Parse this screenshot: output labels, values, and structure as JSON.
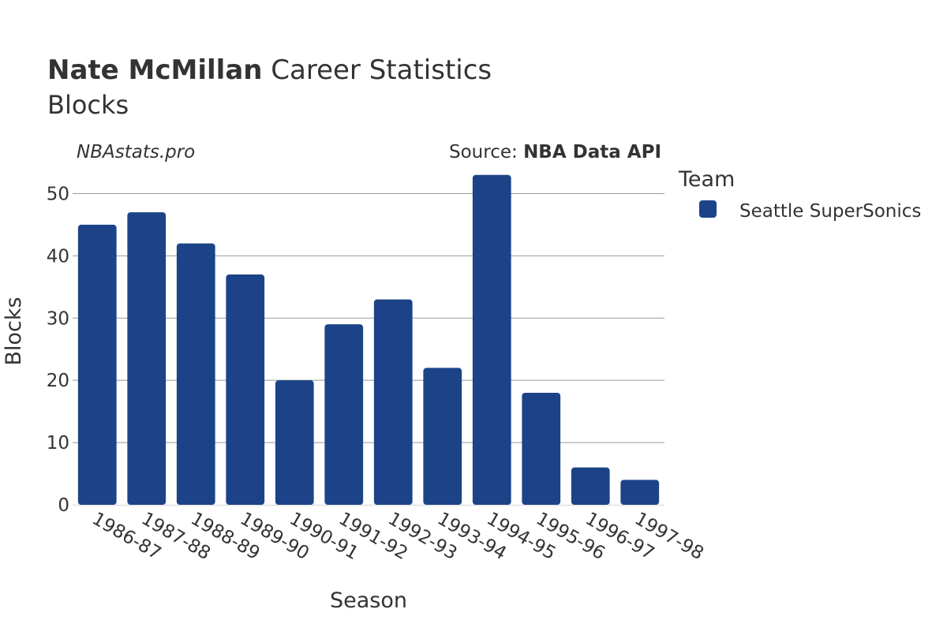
{
  "header": {
    "player_name": "Nate McMillan",
    "title_rest": " Career Statistics",
    "subtitle": "Blocks"
  },
  "credit": "NBAstats.pro",
  "source": {
    "prefix": "Source: ",
    "name": "NBA Data API"
  },
  "legend": {
    "title": "Team",
    "items": [
      {
        "label": "Seattle SuperSonics",
        "color": "#1c4388"
      }
    ]
  },
  "chart_data": {
    "type": "bar",
    "title": "Nate McMillan Career Statistics",
    "subtitle": "Blocks",
    "xlabel": "Season",
    "ylabel": "Blocks",
    "categories": [
      "1986-87",
      "1987-88",
      "1988-89",
      "1989-90",
      "1990-91",
      "1991-92",
      "1992-93",
      "1993-94",
      "1994-95",
      "1995-96",
      "1996-97",
      "1997-98"
    ],
    "series": [
      {
        "name": "Seattle SuperSonics",
        "color": "#1c4388",
        "values": [
          45,
          47,
          42,
          37,
          20,
          29,
          33,
          22,
          53,
          18,
          6,
          4
        ]
      }
    ],
    "ylim": [
      0,
      55
    ],
    "yticks": [
      0,
      10,
      20,
      30,
      40,
      50
    ],
    "grid": true,
    "legend_position": "right"
  }
}
